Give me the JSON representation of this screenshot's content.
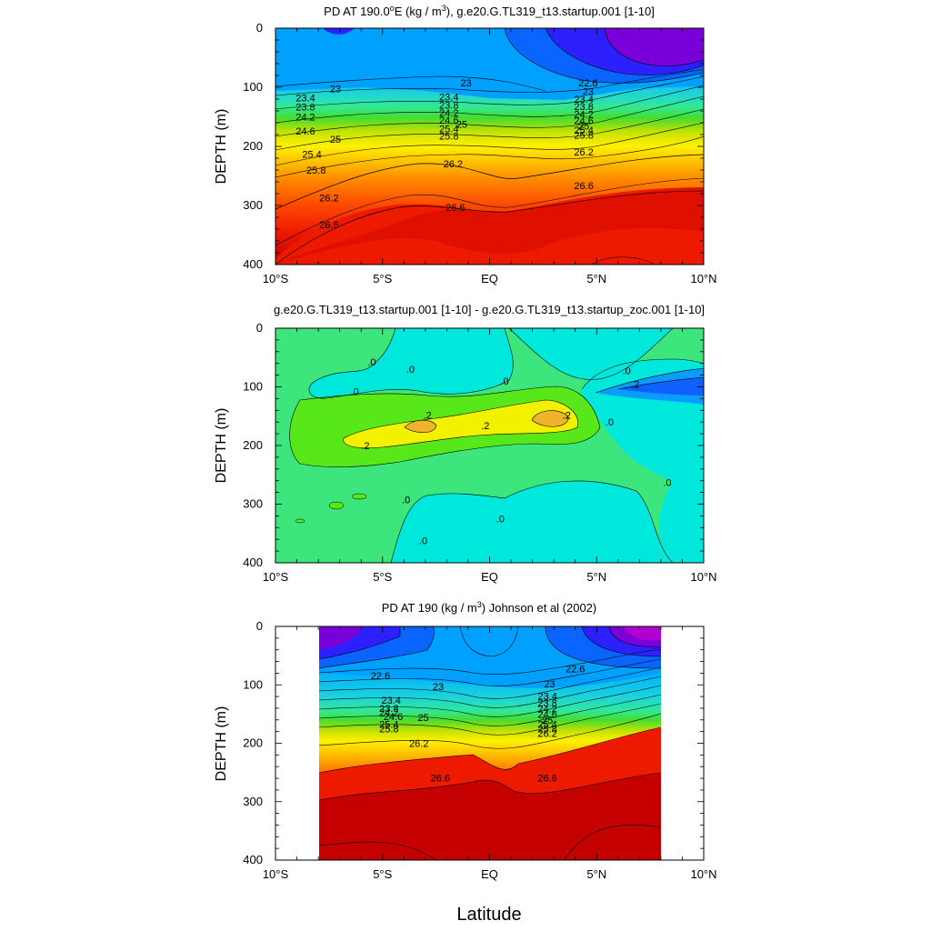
{
  "xlabel": "Latitude",
  "chart_data": [
    {
      "type": "heatmap",
      "title": "PD AT 190.0°E (kg / m³), g.e20.G.TL319_t13.startup.001 [1-10]",
      "title_parts": {
        "a": "PD AT 190.0",
        "sup1": "o",
        "b": "E (kg / m",
        "sup2": "3",
        "c": "), g.e20.G.TL319_t13.startup.001 [1-10]"
      },
      "ylabel": "DEPTH (m)",
      "x_ticks": [
        "10°S",
        "5°S",
        "EQ",
        "5°N",
        "10°N"
      ],
      "y_ticks": [
        "0",
        "100",
        "200",
        "300",
        "400"
      ],
      "xlim": [
        -10,
        10
      ],
      "ylim": [
        400,
        0
      ],
      "y_inverted": true,
      "x_data_range": [
        -10,
        10
      ],
      "contour_levels": [
        "22.6",
        "23",
        "23.4",
        "23.8",
        "24.2",
        "24.6",
        "25",
        "25.4",
        "25.8",
        "26.2",
        "26.6"
      ],
      "contour_labels": [
        {
          "text": "23",
          "lat": -7.2,
          "depth": 102
        },
        {
          "text": "23.4",
          "lat": -8.6,
          "depth": 118
        },
        {
          "text": "23.8",
          "lat": -8.6,
          "depth": 133
        },
        {
          "text": "24.2",
          "lat": -8.6,
          "depth": 150
        },
        {
          "text": "24.6",
          "lat": -8.6,
          "depth": 174
        },
        {
          "text": "25",
          "lat": -7.2,
          "depth": 188
        },
        {
          "text": "25.4",
          "lat": -8.3,
          "depth": 213
        },
        {
          "text": "25.8",
          "lat": -8.1,
          "depth": 240
        },
        {
          "text": "26.2",
          "lat": -7.5,
          "depth": 287
        },
        {
          "text": "26.6",
          "lat": -7.5,
          "depth": 332
        },
        {
          "text": "23",
          "lat": -1.1,
          "depth": 92
        },
        {
          "text": "23.4",
          "lat": -1.9,
          "depth": 116
        },
        {
          "text": "23.8",
          "lat": -1.9,
          "depth": 130
        },
        {
          "text": "24.2",
          "lat": -1.9,
          "depth": 143
        },
        {
          "text": "24.6",
          "lat": -1.9,
          "depth": 155
        },
        {
          "text": "25",
          "lat": -1.3,
          "depth": 162
        },
        {
          "text": "25.4",
          "lat": -1.9,
          "depth": 170
        },
        {
          "text": "25.8",
          "lat": -1.9,
          "depth": 182
        },
        {
          "text": "26.2",
          "lat": -1.7,
          "depth": 229
        },
        {
          "text": "26.6",
          "lat": -1.6,
          "depth": 303
        },
        {
          "text": "22.6",
          "lat": 4.6,
          "depth": 92
        },
        {
          "text": "23",
          "lat": 4.6,
          "depth": 107
        },
        {
          "text": "23.4",
          "lat": 4.4,
          "depth": 120
        },
        {
          "text": "23.8",
          "lat": 4.4,
          "depth": 132
        },
        {
          "text": "24.2",
          "lat": 4.4,
          "depth": 145
        },
        {
          "text": "24.6",
          "lat": 4.4,
          "depth": 156
        },
        {
          "text": "25",
          "lat": 4.4,
          "depth": 165
        },
        {
          "text": "25.4",
          "lat": 4.4,
          "depth": 172
        },
        {
          "text": "25.8",
          "lat": 4.4,
          "depth": 181
        },
        {
          "text": "26.2",
          "lat": 4.4,
          "depth": 209
        },
        {
          "text": "26.6",
          "lat": 4.4,
          "depth": 266
        }
      ]
    },
    {
      "type": "heatmap",
      "title": "g.e20.G.TL319_t13.startup.001 [1-10] - g.e20.G.TL319_t13.startup_zoc.001 [1-10]",
      "ylabel": "DEPTH (m)",
      "x_ticks": [
        "10°S",
        "5°S",
        "EQ",
        "5°N",
        "10°N"
      ],
      "y_ticks": [
        "0",
        "100",
        "200",
        "300",
        "400"
      ],
      "xlim": [
        -10,
        10
      ],
      "ylim": [
        400,
        0
      ],
      "y_inverted": true,
      "x_data_range": [
        -10,
        10
      ],
      "contour_levels": [
        ".0",
        ".2"
      ],
      "contour_labels": [
        {
          "text": ".0",
          "lat": -5.5,
          "depth": 57
        },
        {
          "text": ".0",
          "lat": -3.7,
          "depth": 70
        },
        {
          "text": ".0",
          "lat": -6.3,
          "depth": 108
        },
        {
          "text": ".0",
          "lat": 0.7,
          "depth": 90
        },
        {
          "text": ".0",
          "lat": 6.4,
          "depth": 72
        },
        {
          "text": ".2",
          "lat": 6.8,
          "depth": 95
        },
        {
          "text": ".2",
          "lat": -2.9,
          "depth": 148
        },
        {
          "text": ".2",
          "lat": -0.2,
          "depth": 166
        },
        {
          "text": ".2",
          "lat": 3.6,
          "depth": 148
        },
        {
          "text": ".0",
          "lat": 5.6,
          "depth": 160
        },
        {
          "text": ".2",
          "lat": -5.8,
          "depth": 200
        },
        {
          "text": ".0",
          "lat": -3.9,
          "depth": 292
        },
        {
          "text": ".0",
          "lat": 0.5,
          "depth": 325
        },
        {
          "text": ".0",
          "lat": -3.1,
          "depth": 362
        },
        {
          "text": ".0",
          "lat": 8.3,
          "depth": 263
        }
      ]
    },
    {
      "type": "heatmap",
      "title": "PD AT 190 (kg / m³) Johnson et al (2002)",
      "title_parts": {
        "a": "PD AT 190 (kg / m",
        "sup": "3",
        "b": ") Johnson et al (2002)"
      },
      "ylabel": "DEPTH (m)",
      "x_ticks": [
        "10°S",
        "5°S",
        "EQ",
        "5°N",
        "10°N"
      ],
      "y_ticks": [
        "0",
        "100",
        "200",
        "300",
        "400"
      ],
      "xlim": [
        -10,
        10
      ],
      "ylim": [
        400,
        0
      ],
      "y_inverted": true,
      "x_data_range": [
        -8,
        8
      ],
      "contour_levels": [
        "22.6",
        "23",
        "23.4",
        "23.8",
        "24.2",
        "24.6",
        "25",
        "25.4",
        "25.8",
        "26.2",
        "26.6"
      ],
      "contour_labels": [
        {
          "text": "22.6",
          "lat": -5.1,
          "depth": 84
        },
        {
          "text": "23",
          "lat": -2.4,
          "depth": 103
        },
        {
          "text": "23.4",
          "lat": -4.6,
          "depth": 126
        },
        {
          "text": "23.8",
          "lat": -4.7,
          "depth": 140
        },
        {
          "text": "24.2",
          "lat": -4.7,
          "depth": 147
        },
        {
          "text": "24.6",
          "lat": -4.5,
          "depth": 154
        },
        {
          "text": "25",
          "lat": -3.1,
          "depth": 156
        },
        {
          "text": "25.4",
          "lat": -4.7,
          "depth": 167
        },
        {
          "text": "25.8",
          "lat": -4.7,
          "depth": 175
        },
        {
          "text": "26.2",
          "lat": -3.3,
          "depth": 200
        },
        {
          "text": "26.6",
          "lat": -2.3,
          "depth": 259
        },
        {
          "text": "22.6",
          "lat": 4.0,
          "depth": 72
        },
        {
          "text": "23",
          "lat": 2.8,
          "depth": 98
        },
        {
          "text": "23.4",
          "lat": 2.7,
          "depth": 119
        },
        {
          "text": "23.8",
          "lat": 2.7,
          "depth": 131
        },
        {
          "text": "24.2",
          "lat": 2.7,
          "depth": 141
        },
        {
          "text": "24.6",
          "lat": 2.7,
          "depth": 150
        },
        {
          "text": "25",
          "lat": 2.7,
          "depth": 160
        },
        {
          "text": "25.4",
          "lat": 2.7,
          "depth": 167
        },
        {
          "text": "25.8",
          "lat": 2.7,
          "depth": 175
        },
        {
          "text": "26.2",
          "lat": 2.7,
          "depth": 183
        },
        {
          "text": "26.6",
          "lat": 2.7,
          "depth": 259
        }
      ]
    }
  ],
  "colors": {
    "density_scale": [
      "#7a00d9",
      "#2d20ff",
      "#0a64ff",
      "#00a0ff",
      "#1bd2dd",
      "#31e89a",
      "#45dd30",
      "#c8e200",
      "#fff000",
      "#ffc400",
      "#ff8a00",
      "#ff4d00",
      "#ee1a00",
      "#c40000"
    ],
    "diff_scale": {
      "negative_strong": "#1060ff",
      "negative_weak": "#00e8dc",
      "zero_band": "#3ce67c",
      "positive_weak": "#58e81a",
      "positive": "#f2f200",
      "positive_strong": "#f0b42a"
    }
  }
}
